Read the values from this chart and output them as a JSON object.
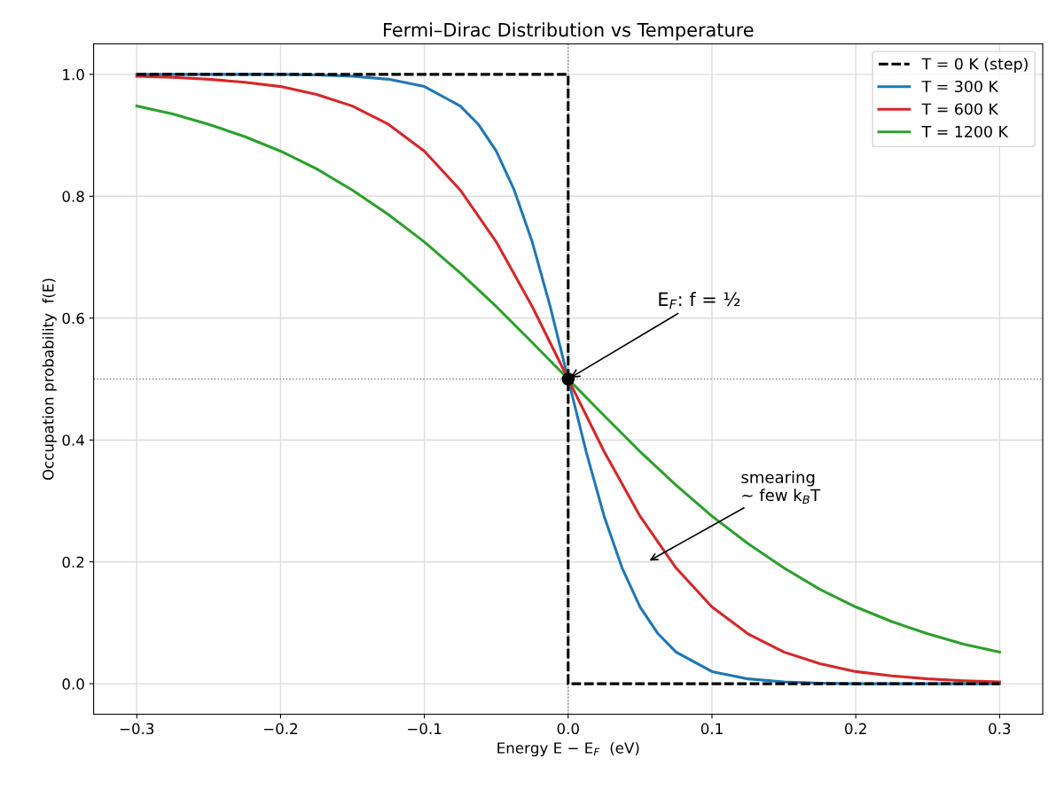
{
  "chart_data": {
    "type": "line",
    "title": "Fermi–Dirac Distribution vs Temperature",
    "xlabel": "Energy E − E$_{F}$  (eV)",
    "ylabel": "Occupation probability  f(E)",
    "x": [
      -0.3,
      -0.275,
      -0.25,
      -0.225,
      -0.2,
      -0.175,
      -0.15,
      -0.125,
      -0.1,
      -0.075,
      -0.05,
      -0.025,
      0.0,
      0.025,
      0.05,
      0.075,
      0.1,
      0.125,
      0.15,
      0.175,
      0.2,
      0.225,
      0.25,
      0.275,
      0.3
    ],
    "series": [
      {
        "name": "T = 0 K (step)",
        "color": "#000000",
        "line_style": "dashed",
        "x": [
          -0.3,
          0.0,
          0.0,
          0.3
        ],
        "values": [
          1.0,
          1.0,
          0.0,
          0.0
        ]
      },
      {
        "name": "T = 300 K",
        "color": "#1f77b4",
        "x": [
          -0.3,
          -0.275,
          -0.25,
          -0.225,
          -0.2,
          -0.175,
          -0.15,
          -0.125,
          -0.1,
          -0.075,
          -0.0625,
          -0.05,
          -0.0375,
          -0.025,
          -0.0125,
          0.0,
          0.0125,
          0.025,
          0.0375,
          0.05,
          0.0625,
          0.075,
          0.1,
          0.125,
          0.15,
          0.175,
          0.2,
          0.225,
          0.25,
          0.275,
          0.3
        ],
        "values": [
          1.0,
          1.0,
          1.0,
          1.0,
          1.0,
          0.999,
          0.997,
          0.992,
          0.98,
          0.948,
          0.918,
          0.874,
          0.81,
          0.725,
          0.619,
          0.5,
          0.381,
          0.275,
          0.19,
          0.126,
          0.082,
          0.052,
          0.02,
          0.008,
          0.003,
          0.001,
          0.0,
          0.0,
          0.0,
          0.0,
          0.0
        ]
      },
      {
        "name": "T = 600 K",
        "color": "#d62728",
        "values": [
          0.997,
          0.995,
          0.992,
          0.987,
          0.98,
          0.967,
          0.948,
          0.918,
          0.874,
          0.81,
          0.725,
          0.619,
          0.5,
          0.381,
          0.275,
          0.19,
          0.126,
          0.082,
          0.052,
          0.033,
          0.02,
          0.013,
          0.008,
          0.005,
          0.003
        ]
      },
      {
        "name": "T = 1200 K",
        "color": "#2ca02c",
        "values": [
          0.948,
          0.935,
          0.918,
          0.898,
          0.874,
          0.845,
          0.81,
          0.77,
          0.725,
          0.674,
          0.619,
          0.56,
          0.5,
          0.44,
          0.381,
          0.326,
          0.275,
          0.23,
          0.19,
          0.155,
          0.126,
          0.102,
          0.082,
          0.065,
          0.052
        ]
      },
      {
        "type": "scatter",
        "color": "#000000",
        "marker": "circle",
        "x": [
          0.0
        ],
        "values": [
          0.5
        ]
      }
    ],
    "xlim": [
      -0.33,
      0.33
    ],
    "ylim": [
      -0.05,
      1.05
    ],
    "xticks": [
      {
        "value": -0.3,
        "label": "−0.3"
      },
      {
        "value": -0.2,
        "label": "−0.2"
      },
      {
        "value": -0.1,
        "label": "−0.1"
      },
      {
        "value": 0,
        "label": "0.0"
      },
      0.1,
      0.2,
      0.3
    ],
    "yticks": [
      {
        "value": 0,
        "label": "0.0"
      },
      0.2,
      0.4,
      0.6,
      0.8,
      {
        "value": 1,
        "label": "1.0"
      }
    ],
    "ref_lines": [
      {
        "axis": "x",
        "value": 0.0,
        "color": "#808080",
        "line_style": "dotted"
      },
      {
        "axis": "y",
        "value": 0.5,
        "color": "#808080",
        "line_style": "dotted"
      }
    ],
    "annotations": [
      {
        "text": "E$_{F}$: f = ½",
        "x": 0.0,
        "y": 0.5
      },
      "smearing\n~ few k$_{B}$T"
    ],
    "grid": true,
    "legend": "top right"
  }
}
